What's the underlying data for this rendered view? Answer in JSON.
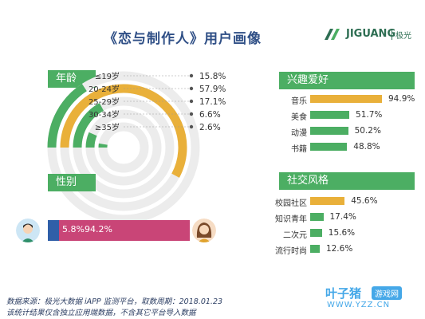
{
  "title": "《恋与制作人》用户画像",
  "logo": {
    "brand": "JIGUANG",
    "brand_cn": "极光"
  },
  "colors": {
    "green": "#4cae63",
    "orange": "#e9b03a",
    "ring_bg": "#ececec",
    "male": "#2f5fa8",
    "female": "#c94577"
  },
  "sections": {
    "age": "年龄",
    "gender": "性别",
    "interests": "兴趣爱好",
    "social": "社交风格"
  },
  "chart_data": [
    {
      "type": "radial_bar",
      "title": "年龄",
      "categories": [
        "≤19岁",
        "20-24岁",
        "25-29岁",
        "30-34岁",
        "≥35岁"
      ],
      "values": [
        15.8,
        57.9,
        17.1,
        6.6,
        2.6
      ],
      "unit": "%",
      "labels": [
        "15.8%",
        "57.9%",
        "17.1%",
        "6.6%",
        "2.6%"
      ],
      "highlight_index": 1
    },
    {
      "type": "stacked_bar",
      "title": "性别",
      "categories": [
        "男",
        "女"
      ],
      "values": [
        5.8,
        94.2
      ],
      "labels": [
        "5.8%",
        "94.2%"
      ]
    },
    {
      "type": "bar",
      "title": "兴趣爱好",
      "orientation": "horizontal",
      "categories": [
        "音乐",
        "美食",
        "动漫",
        "书籍"
      ],
      "values": [
        94.9,
        51.7,
        50.2,
        48.8
      ],
      "labels": [
        "94.9%",
        "51.7%",
        "50.2%",
        "48.8%"
      ],
      "highlight_index": 0
    },
    {
      "type": "bar",
      "title": "社交风格",
      "orientation": "horizontal",
      "categories": [
        "校园社区",
        "知识青年",
        "二次元",
        "流行时尚"
      ],
      "values": [
        45.6,
        17.4,
        15.6,
        12.6
      ],
      "labels": [
        "45.6%",
        "17.4%",
        "15.6%",
        "12.6%"
      ],
      "highlight_index": 0
    }
  ],
  "source": {
    "line1": "数据来源：极光大数据 iAPP 监测平台，取数周期：2018.01.23",
    "line2": "该统计结果仅含独立应用端数据，不含其它平台导入数据"
  },
  "watermark": {
    "name": "叶子猪",
    "badge": "游戏网",
    "url": "WWW.YZZ.CN"
  }
}
